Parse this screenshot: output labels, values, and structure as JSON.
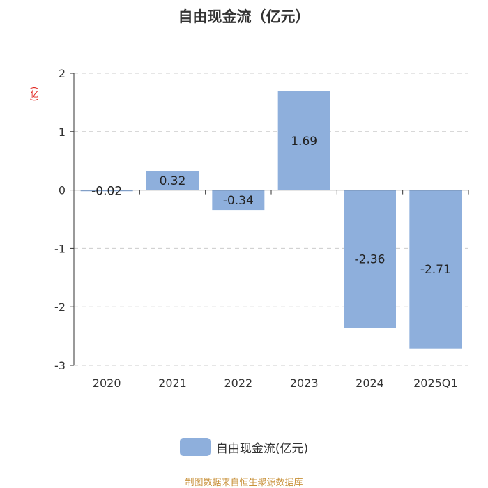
{
  "chart_data": {
    "type": "bar",
    "title": "自由现金流（亿元）",
    "unit_label": "(亿)",
    "categories": [
      "2020",
      "2021",
      "2022",
      "2023",
      "2024",
      "2025Q1"
    ],
    "series": [
      {
        "name": "自由现金流(亿元)",
        "values": [
          -0.02,
          0.32,
          -0.34,
          1.69,
          -2.36,
          -2.71
        ],
        "labels": [
          "-0.02",
          "0.32",
          "-0.34",
          "1.69",
          "-2.36",
          "-2.71"
        ],
        "color": "#8eafdc"
      }
    ],
    "ylim": [
      -3,
      2
    ],
    "yticks": [
      2,
      1,
      0,
      -1,
      -2,
      -3
    ],
    "ytick_labels": [
      "2",
      "1",
      "0",
      "-1",
      "-2",
      "-3"
    ],
    "grid": "horizontal dashed",
    "legend_position": "bottom-center"
  },
  "footer": {
    "source": "制图数据来自恒生聚源数据库"
  }
}
